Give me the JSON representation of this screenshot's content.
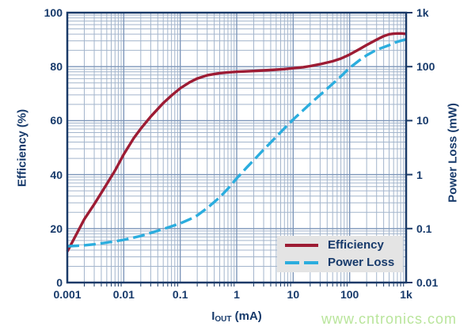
{
  "watermark": {
    "text": "www.cntronics.com",
    "color": "#b9e59b"
  },
  "colors": {
    "axis_text": "#173a6b",
    "plot_border": "#1a3a68",
    "grid_minor": "#a3b5cc",
    "grid_major": "#7d96b9",
    "legend_background": "#e4e4e4",
    "background": "#ffffff"
  },
  "chart_data": {
    "type": "line",
    "title": "",
    "grid": true,
    "x_axis": {
      "label": "IOUT (mA)",
      "label_main": "I",
      "label_sub": "OUT",
      "label_unit": " (mA)",
      "scale": "log",
      "min": 0.001,
      "max": 1000,
      "tick_labels": [
        "0.001",
        "0.01",
        "0.1",
        "1",
        "10",
        "100",
        "1k"
      ]
    },
    "y_left": {
      "label": "Efficiency (%)",
      "scale": "linear",
      "min": 0,
      "max": 100,
      "tick_labels": [
        "100",
        "80",
        "60",
        "40",
        "20",
        "0"
      ],
      "tick_values": [
        100,
        80,
        60,
        40,
        20,
        0
      ]
    },
    "y_right": {
      "label": "Power Loss (mW)",
      "scale": "log",
      "min": 0.01,
      "max": 1000,
      "tick_labels": [
        "1k",
        "100",
        "10",
        "1",
        "0.1",
        "0.01"
      ],
      "tick_values": [
        1000,
        100,
        10,
        1,
        0.1,
        0.01
      ]
    },
    "legend": {
      "position": "bottom-right",
      "entries": [
        "Efficiency",
        "Power Loss"
      ]
    },
    "series": [
      {
        "name": "Efficiency",
        "axis": "left",
        "color": "#9d1c34",
        "style": "solid",
        "points": [
          [
            0.001,
            11.5
          ],
          [
            0.0015,
            18.5
          ],
          [
            0.002,
            23.5
          ],
          [
            0.003,
            29
          ],
          [
            0.005,
            36.5
          ],
          [
            0.007,
            41.5
          ],
          [
            0.01,
            47.5
          ],
          [
            0.015,
            53.5
          ],
          [
            0.02,
            57
          ],
          [
            0.03,
            61.5
          ],
          [
            0.05,
            66.5
          ],
          [
            0.07,
            69.3
          ],
          [
            0.1,
            72
          ],
          [
            0.15,
            74.3
          ],
          [
            0.2,
            75.6
          ],
          [
            0.3,
            76.8
          ],
          [
            0.5,
            77.6
          ],
          [
            0.7,
            77.9
          ],
          [
            1,
            78.1
          ],
          [
            2,
            78.4
          ],
          [
            3,
            78.6
          ],
          [
            5,
            78.9
          ],
          [
            7,
            79.1
          ],
          [
            10,
            79.4
          ],
          [
            15,
            79.8
          ],
          [
            20,
            80.2
          ],
          [
            30,
            80.9
          ],
          [
            50,
            82
          ],
          [
            70,
            83
          ],
          [
            100,
            84.5
          ],
          [
            150,
            86.5
          ],
          [
            200,
            88
          ],
          [
            300,
            90
          ],
          [
            400,
            91.3
          ],
          [
            500,
            92
          ],
          [
            600,
            92.2
          ],
          [
            700,
            92.3
          ],
          [
            850,
            92.3
          ],
          [
            1000,
            92.1
          ]
        ]
      },
      {
        "name": "Power Loss",
        "axis": "right",
        "color": "#2badde",
        "style": "dashed",
        "points": [
          [
            0.001,
            0.047
          ],
          [
            0.0015,
            0.048
          ],
          [
            0.002,
            0.049
          ],
          [
            0.003,
            0.051
          ],
          [
            0.005,
            0.055
          ],
          [
            0.007,
            0.058
          ],
          [
            0.01,
            0.062
          ],
          [
            0.015,
            0.068
          ],
          [
            0.02,
            0.073
          ],
          [
            0.03,
            0.083
          ],
          [
            0.05,
            0.098
          ],
          [
            0.07,
            0.11
          ],
          [
            0.1,
            0.125
          ],
          [
            0.15,
            0.15
          ],
          [
            0.2,
            0.175
          ],
          [
            0.3,
            0.24
          ],
          [
            0.5,
            0.38
          ],
          [
            0.7,
            0.55
          ],
          [
            1,
            0.85
          ],
          [
            1.5,
            1.35
          ],
          [
            2,
            1.85
          ],
          [
            3,
            2.9
          ],
          [
            5,
            5.0
          ],
          [
            7,
            7.2
          ],
          [
            10,
            10.5
          ],
          [
            15,
            15.5
          ],
          [
            20,
            20.5
          ],
          [
            30,
            30
          ],
          [
            50,
            48
          ],
          [
            70,
            66
          ],
          [
            100,
            95
          ],
          [
            150,
            132
          ],
          [
            200,
            162
          ],
          [
            300,
            205
          ],
          [
            500,
            250
          ],
          [
            700,
            290
          ],
          [
            1000,
            320
          ]
        ]
      }
    ]
  }
}
